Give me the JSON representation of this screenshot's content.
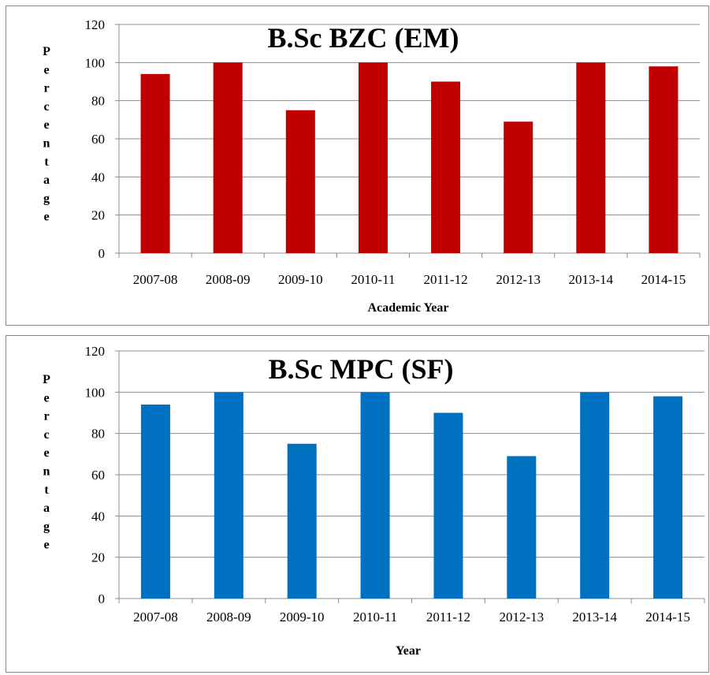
{
  "chart_data": [
    {
      "type": "bar",
      "title": "B.Sc BZC (EM)",
      "xlabel": "Academic Year",
      "ylabel": "Percentage",
      "ylim": [
        0,
        120
      ],
      "yticks": [
        0,
        20,
        40,
        60,
        80,
        100,
        120
      ],
      "grid": true,
      "bar_color": "#C00000",
      "categories": [
        "2007-08",
        "2008-09",
        "2009-10",
        "2010-11",
        "2011-12",
        "2012-13",
        "2013-14",
        "2014-15"
      ],
      "values": [
        94,
        100,
        75,
        100,
        90,
        69,
        100,
        98
      ]
    },
    {
      "type": "bar",
      "title": "B.Sc MPC (SF)",
      "xlabel": "Year",
      "ylabel": "Percentage",
      "ylim": [
        0,
        120
      ],
      "yticks": [
        0,
        20,
        40,
        60,
        80,
        100,
        120
      ],
      "grid": true,
      "bar_color": "#0070C0",
      "categories": [
        "2007-08",
        "2008-09",
        "2009-10",
        "2010-11",
        "2011-12",
        "2012-13",
        "2013-14",
        "2014-15"
      ],
      "values": [
        94,
        100,
        75,
        100,
        90,
        69,
        100,
        98
      ]
    }
  ]
}
